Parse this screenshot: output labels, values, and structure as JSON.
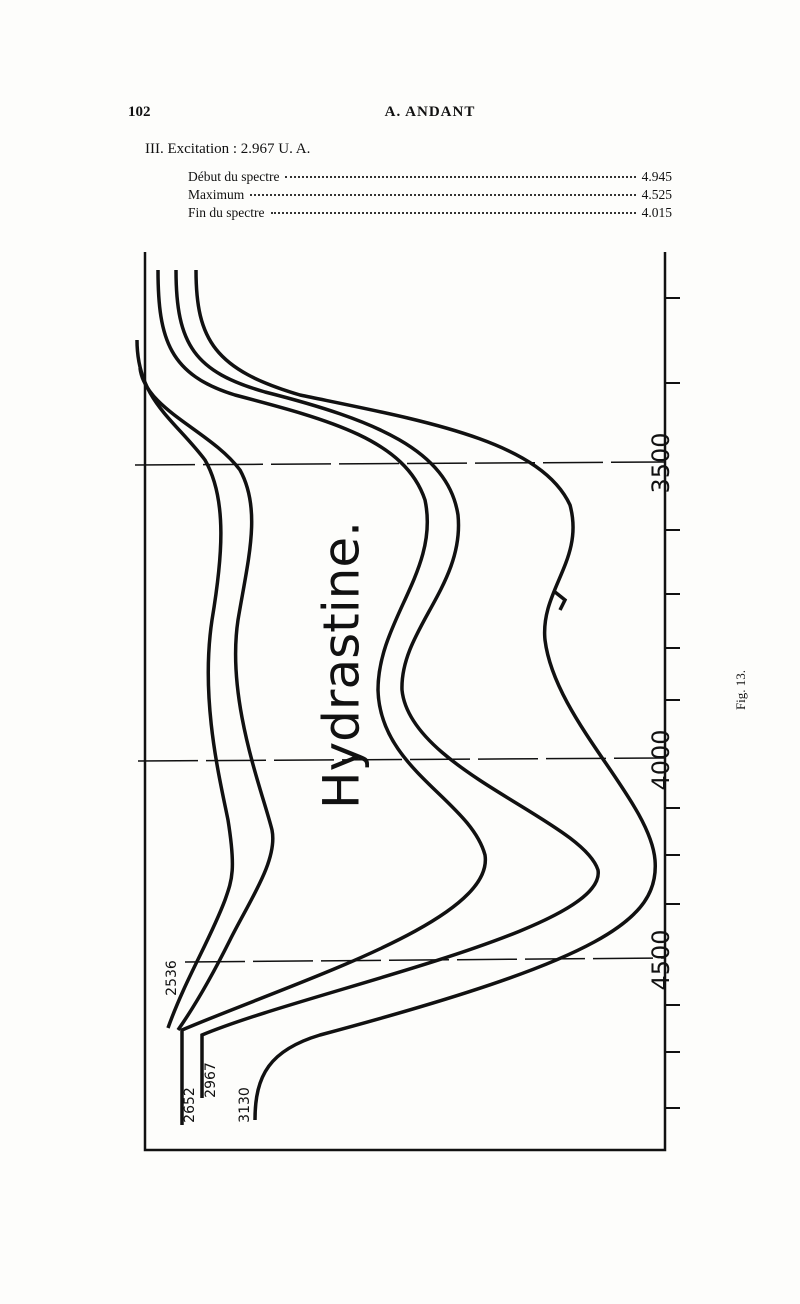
{
  "header": {
    "page_number": "102",
    "author": "A. ANDANT"
  },
  "section": {
    "heading": "III. Excitation : 2.967 U. A.",
    "rows": [
      {
        "label": "Début du spectre",
        "value": "4.945"
      },
      {
        "label": "Maximum",
        "value": "4.525"
      },
      {
        "label": "Fin du spectre",
        "value": "4.015"
      }
    ]
  },
  "figure": {
    "title": "Hydrastine.",
    "axis_labels": [
      "3500",
      "4000",
      "4500"
    ],
    "curve_labels": [
      "2536",
      "2652",
      "2967",
      "3130"
    ],
    "caption": "Fig. 13."
  }
}
